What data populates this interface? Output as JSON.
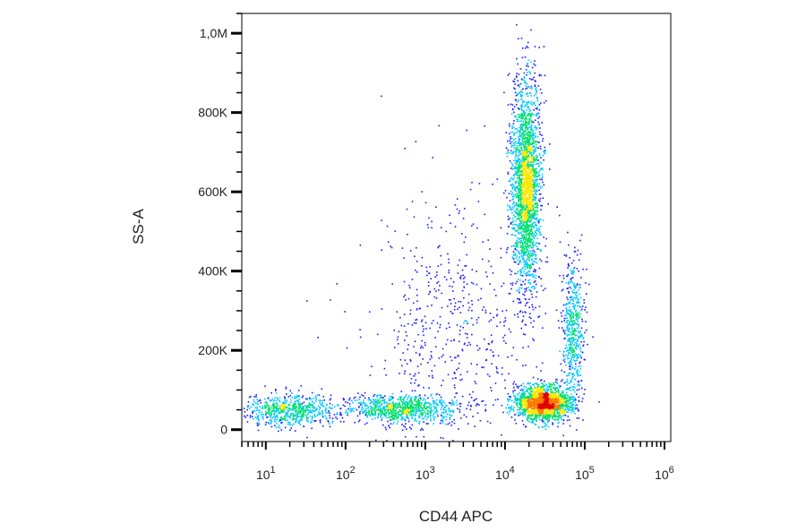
{
  "chart_data": {
    "type": "scatter",
    "xlabel": "CD44 APC",
    "ylabel": "SS-A",
    "x_scale": "log",
    "xlim": [
      5,
      1200000
    ],
    "ylim": [
      -30000,
      1050000
    ],
    "x_tick_labels": [
      {
        "value": 10,
        "base": "10",
        "exp": "1"
      },
      {
        "value": 100,
        "base": "10",
        "exp": "2"
      },
      {
        "value": 1000,
        "base": "10",
        "exp": "3"
      },
      {
        "value": 10000,
        "base": "10",
        "exp": "4"
      },
      {
        "value": 100000,
        "base": "10",
        "exp": "5"
      },
      {
        "value": 1000000,
        "base": "10",
        "exp": "6"
      }
    ],
    "y_tick_labels": [
      {
        "value": 0,
        "label": "0"
      },
      {
        "value": 200000,
        "label": "200K"
      },
      {
        "value": 400000,
        "label": "400K"
      },
      {
        "value": 600000,
        "label": "600K"
      },
      {
        "value": 800000,
        "label": "800K"
      },
      {
        "value": 1000000,
        "label": "1,0M"
      }
    ],
    "grid": false,
    "density_colormap": [
      "#1a1aff",
      "#00c8ff",
      "#00e070",
      "#ffe600",
      "#ff7a00",
      "#e00000"
    ],
    "populations": [
      {
        "center_x": 18000,
        "center_y": 620000,
        "spread_log_x": 0.09,
        "spread_y": 130000,
        "count": 2400
      },
      {
        "center_x": 30000,
        "center_y": 70000,
        "spread_log_x": 0.18,
        "spread_y": 22000,
        "count": 1800
      },
      {
        "center_x": 70000,
        "center_y": 260000,
        "spread_log_x": 0.07,
        "spread_y": 90000,
        "count": 550
      },
      {
        "center_x": 500,
        "center_y": 55000,
        "spread_log_x": 0.35,
        "spread_y": 18000,
        "count": 900
      },
      {
        "center_x": 20,
        "center_y": 50000,
        "spread_log_x": 0.3,
        "spread_y": 20000,
        "count": 700
      },
      {
        "center_x": 2500,
        "center_y": 250000,
        "spread_log_x": 0.55,
        "spread_y": 180000,
        "count": 600
      }
    ]
  }
}
